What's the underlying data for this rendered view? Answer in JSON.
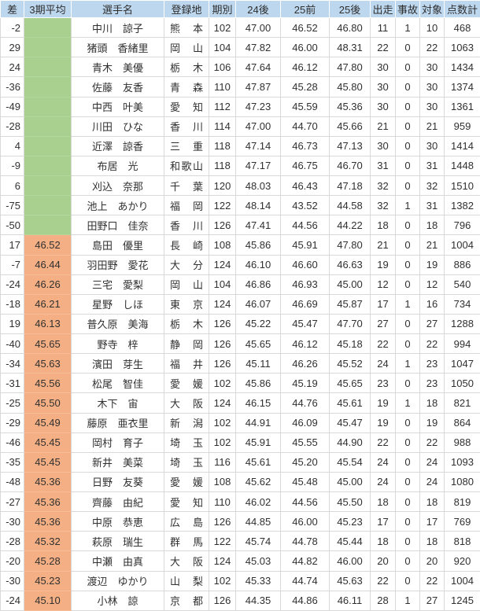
{
  "table": {
    "columns": [
      {
        "key": "sa",
        "label": "差"
      },
      {
        "key": "avg3",
        "label": "3期平均"
      },
      {
        "key": "name",
        "label": "選手名"
      },
      {
        "key": "reg",
        "label": "登録地"
      },
      {
        "key": "term",
        "label": "期別"
      },
      {
        "key": "p24late",
        "label": "24後"
      },
      {
        "key": "p25early",
        "label": "25前"
      },
      {
        "key": "p25late",
        "label": "25後"
      },
      {
        "key": "starts",
        "label": "出走"
      },
      {
        "key": "accident",
        "label": "事故"
      },
      {
        "key": "target",
        "label": "対象"
      },
      {
        "key": "points",
        "label": "点数計"
      }
    ],
    "rows": [
      {
        "band": "green",
        "sa": "-2",
        "avg3": "",
        "name": "中川　諒子",
        "reg": "熊本",
        "term": "102",
        "p24late": "47.00",
        "p25early": "46.52",
        "p25late": "46.80",
        "starts": "11",
        "accident": "1",
        "target": "10",
        "points": "468"
      },
      {
        "band": "green",
        "sa": "29",
        "avg3": "",
        "name": "猪頭　香緒里",
        "reg": "岡山",
        "term": "104",
        "p24late": "47.82",
        "p25early": "46.00",
        "p25late": "48.31",
        "starts": "22",
        "accident": "0",
        "target": "22",
        "points": "1063"
      },
      {
        "band": "green",
        "sa": "24",
        "avg3": "",
        "name": "青木　美優",
        "reg": "栃木",
        "term": "106",
        "p24late": "47.64",
        "p25early": "46.12",
        "p25late": "47.80",
        "starts": "30",
        "accident": "0",
        "target": "30",
        "points": "1434"
      },
      {
        "band": "green",
        "sa": "-36",
        "avg3": "",
        "name": "佐藤　友香",
        "reg": "青森",
        "term": "110",
        "p24late": "47.87",
        "p25early": "45.28",
        "p25late": "45.80",
        "starts": "30",
        "accident": "0",
        "target": "30",
        "points": "1374"
      },
      {
        "band": "green",
        "sa": "-49",
        "avg3": "",
        "name": "中西　叶美",
        "reg": "愛知",
        "term": "112",
        "p24late": "47.23",
        "p25early": "45.59",
        "p25late": "45.36",
        "starts": "30",
        "accident": "0",
        "target": "30",
        "points": "1361"
      },
      {
        "band": "green",
        "sa": "-28",
        "avg3": "",
        "name": "川田　ひな",
        "reg": "香川",
        "term": "114",
        "p24late": "47.00",
        "p25early": "44.70",
        "p25late": "45.66",
        "starts": "21",
        "accident": "0",
        "target": "21",
        "points": "959"
      },
      {
        "band": "green",
        "sa": "4",
        "avg3": "",
        "name": "近澤　諒香",
        "reg": "三重",
        "term": "118",
        "p24late": "47.14",
        "p25early": "46.73",
        "p25late": "47.13",
        "starts": "30",
        "accident": "0",
        "target": "30",
        "points": "1414"
      },
      {
        "band": "green",
        "sa": "-9",
        "avg3": "",
        "name": "布居　光",
        "reg": "和歌山",
        "term": "118",
        "p24late": "47.17",
        "p25early": "46.75",
        "p25late": "46.70",
        "starts": "31",
        "accident": "0",
        "target": "31",
        "points": "1448"
      },
      {
        "band": "green",
        "sa": "6",
        "avg3": "",
        "name": "刈込　奈那",
        "reg": "千葉",
        "term": "120",
        "p24late": "48.03",
        "p25early": "46.43",
        "p25late": "47.18",
        "starts": "32",
        "accident": "0",
        "target": "32",
        "points": "1510"
      },
      {
        "band": "green",
        "sa": "-75",
        "avg3": "",
        "name": "池上　あかり",
        "reg": "福岡",
        "term": "122",
        "p24late": "48.14",
        "p25early": "43.52",
        "p25late": "44.58",
        "starts": "32",
        "accident": "1",
        "target": "31",
        "points": "1382"
      },
      {
        "band": "green",
        "sa": "-50",
        "avg3": "",
        "name": "田野口　佳奈",
        "reg": "香川",
        "term": "126",
        "p24late": "47.41",
        "p25early": "44.56",
        "p25late": "44.22",
        "starts": "18",
        "accident": "0",
        "target": "18",
        "points": "796"
      },
      {
        "band": "orange",
        "sa": "17",
        "avg3": "46.52",
        "name": "島田　優里",
        "reg": "長崎",
        "term": "108",
        "p24late": "45.86",
        "p25early": "45.91",
        "p25late": "47.80",
        "starts": "21",
        "accident": "0",
        "target": "21",
        "points": "1004"
      },
      {
        "band": "orange",
        "sa": "-7",
        "avg3": "46.44",
        "name": "羽田野　愛花",
        "reg": "大分",
        "term": "124",
        "p24late": "46.10",
        "p25early": "46.60",
        "p25late": "46.63",
        "starts": "19",
        "accident": "0",
        "target": "19",
        "points": "886"
      },
      {
        "band": "orange",
        "sa": "-24",
        "avg3": "46.26",
        "name": "三宅　愛梨",
        "reg": "岡山",
        "term": "104",
        "p24late": "46.86",
        "p25early": "46.93",
        "p25late": "45.00",
        "starts": "12",
        "accident": "0",
        "target": "12",
        "points": "540"
      },
      {
        "band": "orange",
        "sa": "-18",
        "avg3": "46.21",
        "name": "星野　しほ",
        "reg": "東京",
        "term": "124",
        "p24late": "46.07",
        "p25early": "46.69",
        "p25late": "45.87",
        "starts": "17",
        "accident": "1",
        "target": "16",
        "points": "734"
      },
      {
        "band": "orange",
        "sa": "19",
        "avg3": "46.13",
        "name": "普久原　美海",
        "reg": "栃木",
        "term": "126",
        "p24late": "45.22",
        "p25early": "45.47",
        "p25late": "47.70",
        "starts": "27",
        "accident": "0",
        "target": "27",
        "points": "1288"
      },
      {
        "band": "orange",
        "sa": "-40",
        "avg3": "45.65",
        "name": "野寺　梓",
        "reg": "静岡",
        "term": "126",
        "p24late": "45.65",
        "p25early": "46.12",
        "p25late": "45.18",
        "starts": "22",
        "accident": "0",
        "target": "22",
        "points": "994"
      },
      {
        "band": "orange",
        "sa": "-34",
        "avg3": "45.63",
        "name": "濱田　芽生",
        "reg": "福井",
        "term": "126",
        "p24late": "45.11",
        "p25early": "46.26",
        "p25late": "45.52",
        "starts": "24",
        "accident": "1",
        "target": "23",
        "points": "1047"
      },
      {
        "band": "orange",
        "sa": "-31",
        "avg3": "45.56",
        "name": "松尾　智佳",
        "reg": "愛媛",
        "term": "102",
        "p24late": "45.86",
        "p25early": "45.19",
        "p25late": "45.65",
        "starts": "23",
        "accident": "0",
        "target": "23",
        "points": "1050"
      },
      {
        "band": "orange",
        "sa": "-25",
        "avg3": "45.50",
        "name": "木下　宙",
        "reg": "大阪",
        "term": "124",
        "p24late": "46.15",
        "p25early": "44.76",
        "p25late": "45.61",
        "starts": "19",
        "accident": "1",
        "target": "18",
        "points": "821"
      },
      {
        "band": "orange",
        "sa": "-29",
        "avg3": "45.49",
        "name": "藤原　亜衣里",
        "reg": "新潟",
        "term": "102",
        "p24late": "44.91",
        "p25early": "46.09",
        "p25late": "45.47",
        "starts": "19",
        "accident": "0",
        "target": "19",
        "points": "864"
      },
      {
        "band": "orange",
        "sa": "-46",
        "avg3": "45.45",
        "name": "岡村　育子",
        "reg": "埼玉",
        "term": "102",
        "p24late": "45.91",
        "p25early": "45.55",
        "p25late": "44.90",
        "starts": "22",
        "accident": "0",
        "target": "22",
        "points": "988"
      },
      {
        "band": "orange",
        "sa": "-35",
        "avg3": "45.45",
        "name": "新井　美菜",
        "reg": "埼玉",
        "term": "116",
        "p24late": "45.61",
        "p25early": "45.20",
        "p25late": "45.54",
        "starts": "24",
        "accident": "0",
        "target": "24",
        "points": "1093"
      },
      {
        "band": "orange",
        "sa": "-48",
        "avg3": "45.36",
        "name": "日野　友葵",
        "reg": "愛媛",
        "term": "108",
        "p24late": "45.62",
        "p25early": "45.48",
        "p25late": "45.00",
        "starts": "24",
        "accident": "0",
        "target": "24",
        "points": "1080"
      },
      {
        "band": "orange",
        "sa": "-27",
        "avg3": "45.36",
        "name": "齊藤　由紀",
        "reg": "愛知",
        "term": "110",
        "p24late": "46.02",
        "p25early": "44.56",
        "p25late": "45.50",
        "starts": "18",
        "accident": "0",
        "target": "18",
        "points": "819"
      },
      {
        "band": "orange",
        "sa": "-30",
        "avg3": "45.36",
        "name": "中原　恭恵",
        "reg": "広島",
        "term": "126",
        "p24late": "44.85",
        "p25early": "46.00",
        "p25late": "45.23",
        "starts": "17",
        "accident": "0",
        "target": "17",
        "points": "769"
      },
      {
        "band": "orange",
        "sa": "-28",
        "avg3": "45.32",
        "name": "萩原　瑞生",
        "reg": "群馬",
        "term": "122",
        "p24late": "45.74",
        "p25early": "44.78",
        "p25late": "45.44",
        "starts": "18",
        "accident": "0",
        "target": "18",
        "points": "818"
      },
      {
        "band": "orange",
        "sa": "-20",
        "avg3": "45.28",
        "name": "中瀬　由真",
        "reg": "大阪",
        "term": "124",
        "p24late": "45.03",
        "p25early": "44.82",
        "p25late": "46.00",
        "starts": "20",
        "accident": "0",
        "target": "20",
        "points": "920"
      },
      {
        "band": "orange",
        "sa": "-30",
        "avg3": "45.23",
        "name": "渡辺　ゆかり",
        "reg": "山梨",
        "term": "102",
        "p24late": "45.33",
        "p25early": "44.74",
        "p25late": "45.63",
        "starts": "22",
        "accident": "0",
        "target": "22",
        "points": "1004"
      },
      {
        "band": "orange",
        "sa": "-24",
        "avg3": "45.10",
        "name": "小林　諒",
        "reg": "京都",
        "term": "126",
        "p24late": "44.35",
        "p25early": "44.86",
        "p25late": "46.11",
        "starts": "28",
        "accident": "1",
        "target": "27",
        "points": "1245"
      }
    ]
  },
  "colors": {
    "header_bg": "#bdd7ee",
    "band_green": "#a9d08e",
    "band_orange": "#f4b084",
    "grid": "#d9d9d9",
    "text": "#303030"
  }
}
